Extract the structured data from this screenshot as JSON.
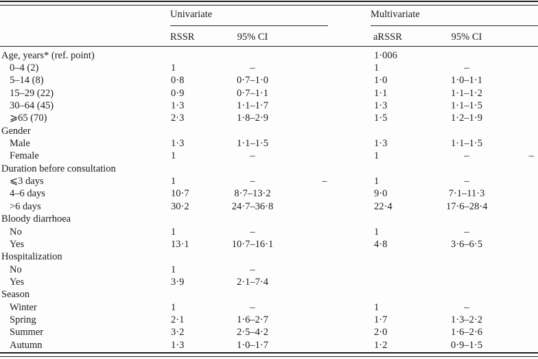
{
  "colors": {
    "text": "#1b1b1b",
    "rule": "#1f1f1f",
    "background": "#fdfdfd"
  },
  "header": {
    "group_univariate": "Univariate",
    "group_multivariate": "Multivariate",
    "col_rssr": "RSSR",
    "col_ci_univariate": "95% CI",
    "col_arssr": "aRSSR",
    "col_ci_multivariate": "95% CI"
  },
  "table": {
    "columns_order": [
      "rssr",
      "ci_univariate",
      "stray_dash_left",
      "arssr",
      "ci_multivariate",
      "stray_dash_right"
    ],
    "rows": [
      {
        "label": "Age, years* (ref. point)",
        "indent": 0,
        "c": [
          "",
          "",
          "",
          "1·006",
          "",
          ""
        ]
      },
      {
        "label": "0–4 (2)",
        "indent": 1,
        "c": [
          "1",
          "–",
          "",
          "1",
          "–",
          ""
        ]
      },
      {
        "label": "5–14 (8)",
        "indent": 1,
        "c": [
          "0·8",
          "0·7–1·0",
          "",
          "1·0",
          "1·0–1·1",
          ""
        ]
      },
      {
        "label": "15–29 (22)",
        "indent": 1,
        "c": [
          "0·9",
          "0·7–1·1",
          "",
          "1·1",
          "1·1–1·2",
          ""
        ]
      },
      {
        "label": "30–64 (45)",
        "indent": 1,
        "c": [
          "1·3",
          "1·1–1·7",
          "",
          "1·3",
          "1·1–1·5",
          ""
        ]
      },
      {
        "label": "⩾65 (70)",
        "indent": 1,
        "c": [
          "2·3",
          "1·8–2·9",
          "",
          "1·5",
          "1·2–1·9",
          ""
        ]
      },
      {
        "label": "Gender",
        "indent": 0,
        "c": [
          "",
          "",
          "",
          "",
          "",
          ""
        ]
      },
      {
        "label": "Male",
        "indent": 1,
        "c": [
          "1·3",
          "1·1–1·5",
          "",
          "1·3",
          "1·1–1·5",
          ""
        ]
      },
      {
        "label": "Female",
        "indent": 1,
        "c": [
          "1",
          "–",
          "",
          "1",
          "–",
          "–"
        ]
      },
      {
        "label": "Duration before consultation",
        "indent": 0,
        "c": [
          "",
          "",
          "",
          "",
          "",
          ""
        ]
      },
      {
        "label": "⩽3 days",
        "indent": 1,
        "c": [
          "1",
          "–",
          "–",
          "1",
          "–",
          ""
        ]
      },
      {
        "label": "4–6 days",
        "indent": 1,
        "c": [
          "10·7",
          "8·7–13·2",
          "",
          "9·0",
          "7·1–11·3",
          ""
        ]
      },
      {
        "label": ">6 days",
        "indent": 1,
        "c": [
          "30·2",
          "24·7–36·8",
          "",
          "22·4",
          "17·6–28·4",
          ""
        ]
      },
      {
        "label": "Bloody diarrhoea",
        "indent": 0,
        "c": [
          "",
          "",
          "",
          "",
          "",
          ""
        ]
      },
      {
        "label": "No",
        "indent": 1,
        "c": [
          "1",
          "–",
          "",
          "1",
          "–",
          ""
        ]
      },
      {
        "label": "Yes",
        "indent": 1,
        "c": [
          "13·1",
          "10·7–16·1",
          "",
          "4·8",
          "3·6–6·5",
          ""
        ]
      },
      {
        "label": "Hospitalization",
        "indent": 0,
        "c": [
          "",
          "",
          "",
          "",
          "",
          ""
        ]
      },
      {
        "label": "No",
        "indent": 1,
        "c": [
          "1",
          "–",
          "",
          "",
          "",
          ""
        ]
      },
      {
        "label": "Yes",
        "indent": 1,
        "c": [
          "3·9",
          "2·1–7·4",
          "",
          "",
          "",
          ""
        ]
      },
      {
        "label": "Season",
        "indent": 0,
        "c": [
          "",
          "",
          "",
          "",
          "",
          ""
        ]
      },
      {
        "label": "Winter",
        "indent": 1,
        "c": [
          "1",
          "–",
          "",
          "1",
          "–",
          ""
        ]
      },
      {
        "label": "Spring",
        "indent": 1,
        "c": [
          "2·1",
          "1·6–2·7",
          "",
          "1·7",
          "1·3–2·2",
          ""
        ]
      },
      {
        "label": "Summer",
        "indent": 1,
        "c": [
          "3·2",
          "2·5–4·2",
          "",
          "2·0",
          "1·6–2·6",
          ""
        ]
      },
      {
        "label": "Autumn",
        "indent": 1,
        "c": [
          "1·3",
          "1·0–1·7",
          "",
          "1·2",
          "0·9–1·5",
          ""
        ]
      }
    ]
  }
}
